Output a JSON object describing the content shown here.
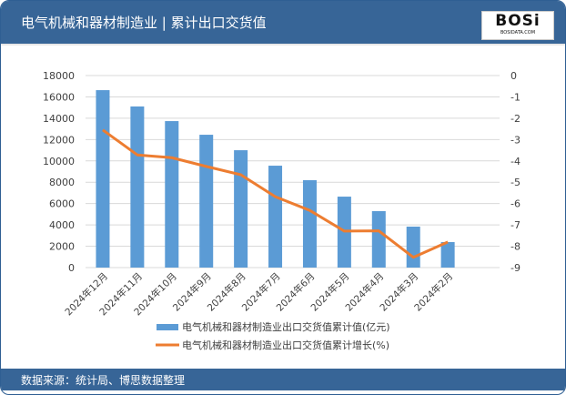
{
  "header": {
    "title": "电气机械和器材制造业 | 累计出口交货值",
    "logo_text": "BOSi",
    "logo_sub": "BOSIDATA.COM"
  },
  "footer": {
    "source": "数据来源：统计局、博思数据整理"
  },
  "colors": {
    "bar": "#5b9bd5",
    "line": "#ed7d31",
    "header": "#376597"
  },
  "chart_data": {
    "type": "bar+line",
    "categories": [
      "2024年12月",
      "2024年11月",
      "2024年10月",
      "2024年9月",
      "2024年8月",
      "2024年7月",
      "2024年6月",
      "2024年5月",
      "2024年4月",
      "2024年3月",
      "2024年2月"
    ],
    "series": [
      {
        "name": "电气机械和器材制造业出口交货值累计值(亿元)",
        "type": "bar",
        "axis": "left",
        "values": [
          16630,
          15100,
          13730,
          12450,
          11000,
          9550,
          8190,
          6650,
          5290,
          3840,
          2390
        ]
      },
      {
        "name": "电气机械和器材制造业出口交货值累计增长(%)",
        "type": "line",
        "axis": "right",
        "values": [
          -2.55,
          -3.72,
          -3.85,
          -4.26,
          -4.65,
          -5.68,
          -6.32,
          -7.29,
          -7.28,
          -8.52,
          -7.8
        ]
      }
    ],
    "y_left": {
      "range": [
        0,
        18000
      ],
      "ticks": [
        "0",
        "2000",
        "4000",
        "6000",
        "8000",
        "10000",
        "12000",
        "14000",
        "16000",
        "18000"
      ]
    },
    "y_right": {
      "range": [
        -9,
        0
      ],
      "ticks": [
        "-9",
        "-8",
        "-7",
        "-6",
        "-5",
        "-4",
        "-3",
        "-2",
        "-1",
        "0"
      ]
    },
    "grid": true,
    "legend": "bottom"
  }
}
